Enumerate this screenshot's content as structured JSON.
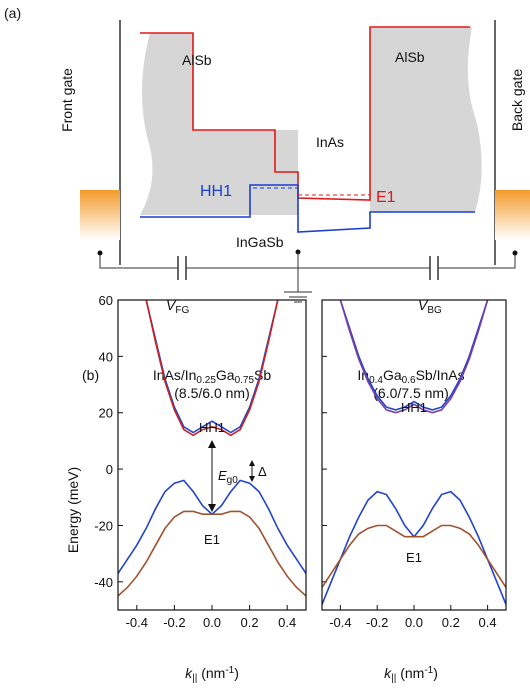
{
  "panel_a": {
    "label": "(a)",
    "front_gate": "Front gate",
    "back_gate": "Back gate",
    "alsb_left": "AlSb",
    "alsb_right": "AlSb",
    "inas": "InAs",
    "hh1": "HH1",
    "e1": "E1",
    "ingasb": "InGaSb",
    "v_fg": [
      "V",
      "FG"
    ],
    "v_bg": [
      "V",
      "BG"
    ]
  },
  "panel_b_label": "(b)",
  "chart_data": [
    {
      "type": "line",
      "title_parts": [
        "InAs/In",
        "0.25",
        "Ga",
        "0.75",
        "Sb"
      ],
      "subtitle": "(8.5/6.0 nm)",
      "ylabel": "Energy (meV)",
      "xlabel_parts": [
        "k",
        "||",
        " (nm",
        "-1",
        ")"
      ],
      "annotations": {
        "hh1": "HH1",
        "e1": "E1",
        "eg0": [
          "E",
          "g0"
        ],
        "delta": "Δ"
      },
      "xlim": [
        -0.5,
        0.5
      ],
      "ylim": [
        -50,
        60
      ],
      "xticks": [
        -0.4,
        -0.2,
        {
          "value": 0,
          "label": "0.0"
        },
        0.2,
        0.4
      ],
      "yticks": [
        -40,
        -20,
        0,
        20,
        40,
        60
      ],
      "series": [
        {
          "color": "#2244cc",
          "x": [
            -0.35,
            -0.3,
            -0.25,
            -0.2,
            -0.15,
            -0.1,
            -0.05,
            0,
            0.05,
            0.1,
            0.15,
            0.2,
            0.25,
            0.3,
            0.35
          ],
          "values": [
            60,
            46,
            32,
            22,
            15,
            13,
            15,
            17,
            15,
            13,
            15,
            22,
            32,
            46,
            60
          ]
        },
        {
          "color": "#cc2222",
          "x": [
            -0.35,
            -0.3,
            -0.25,
            -0.2,
            -0.15,
            -0.1,
            -0.05,
            0,
            0.05,
            0.1,
            0.15,
            0.2,
            0.25,
            0.3,
            0.35
          ],
          "values": [
            60,
            45,
            31,
            21,
            14,
            12,
            14,
            15,
            14,
            12,
            14,
            21,
            31,
            45,
            60
          ]
        },
        {
          "color": "#2244cc",
          "x": [
            -0.5,
            -0.45,
            -0.4,
            -0.35,
            -0.3,
            -0.25,
            -0.2,
            -0.15,
            -0.1,
            -0.05,
            0,
            0.05,
            0.1,
            0.15,
            0.2,
            0.25,
            0.3,
            0.35,
            0.4,
            0.45,
            0.5
          ],
          "values": [
            -37,
            -32,
            -27,
            -21,
            -14,
            -8,
            -5,
            -4,
            -8,
            -13,
            -16,
            -13,
            -8,
            -4,
            -5,
            -8,
            -14,
            -21,
            -27,
            -32,
            -37
          ]
        },
        {
          "color": "#a0522d",
          "x": [
            -0.5,
            -0.45,
            -0.4,
            -0.35,
            -0.3,
            -0.25,
            -0.2,
            -0.15,
            -0.1,
            -0.05,
            0,
            0.05,
            0.1,
            0.15,
            0.2,
            0.25,
            0.3,
            0.35,
            0.4,
            0.45,
            0.5
          ],
          "values": [
            -45,
            -42,
            -38,
            -33,
            -27,
            -21,
            -17,
            -15,
            -15,
            -16,
            -16,
            -16,
            -15,
            -15,
            -17,
            -21,
            -27,
            -33,
            -38,
            -42,
            -45
          ]
        }
      ]
    },
    {
      "type": "line",
      "title_parts": [
        "In",
        "0.4",
        "Ga",
        "0.6",
        "Sb/InAs"
      ],
      "subtitle": "(6.0/7.5 nm)",
      "xlabel_parts": [
        "k",
        "||",
        " (nm",
        "-1",
        ")"
      ],
      "annotations": {
        "hh1": "HH1",
        "e1": "E1"
      },
      "xlim": [
        -0.5,
        0.5
      ],
      "ylim": [
        -50,
        60
      ],
      "xticks": [
        -0.4,
        -0.2,
        {
          "value": 0,
          "label": "0.0"
        },
        0.2,
        0.4
      ],
      "yticks": [
        -40,
        -20,
        0,
        20,
        40,
        60
      ],
      "series": [
        {
          "color": "#2244cc",
          "x": [
            -0.4,
            -0.35,
            -0.3,
            -0.25,
            -0.2,
            -0.15,
            -0.1,
            -0.05,
            0,
            0.05,
            0.1,
            0.15,
            0.2,
            0.25,
            0.3,
            0.35,
            0.4
          ],
          "values": [
            60,
            50,
            40,
            32,
            26,
            22,
            21,
            22,
            24,
            22,
            21,
            22,
            26,
            32,
            40,
            50,
            60
          ]
        },
        {
          "color": "#7a3fa0",
          "x": [
            -0.4,
            -0.35,
            -0.3,
            -0.25,
            -0.2,
            -0.15,
            -0.1,
            -0.05,
            0,
            0.05,
            0.1,
            0.15,
            0.2,
            0.25,
            0.3,
            0.35,
            0.4
          ],
          "values": [
            60,
            49,
            39,
            31,
            25,
            21,
            20,
            21,
            23,
            21,
            20,
            21,
            25,
            31,
            39,
            49,
            60
          ]
        },
        {
          "color": "#2244cc",
          "x": [
            -0.5,
            -0.45,
            -0.4,
            -0.35,
            -0.3,
            -0.25,
            -0.2,
            -0.15,
            -0.1,
            -0.05,
            0,
            0.05,
            0.1,
            0.15,
            0.2,
            0.25,
            0.3,
            0.35,
            0.4,
            0.45,
            0.5
          ],
          "values": [
            -48,
            -40,
            -32,
            -24,
            -17,
            -11,
            -8,
            -9,
            -14,
            -20,
            -24,
            -20,
            -14,
            -9,
            -8,
            -11,
            -17,
            -24,
            -32,
            -40,
            -48
          ]
        },
        {
          "color": "#a0522d",
          "x": [
            -0.5,
            -0.45,
            -0.4,
            -0.35,
            -0.3,
            -0.25,
            -0.2,
            -0.15,
            -0.1,
            -0.05,
            0,
            0.05,
            0.1,
            0.15,
            0.2,
            0.25,
            0.3,
            0.35,
            0.4,
            0.45,
            0.5
          ],
          "values": [
            -42,
            -37,
            -32,
            -27,
            -23,
            -21,
            -20,
            -20,
            -22,
            -24,
            -24,
            -24,
            -22,
            -20,
            -20,
            -21,
            -23,
            -27,
            -32,
            -37,
            -42
          ]
        }
      ]
    }
  ]
}
